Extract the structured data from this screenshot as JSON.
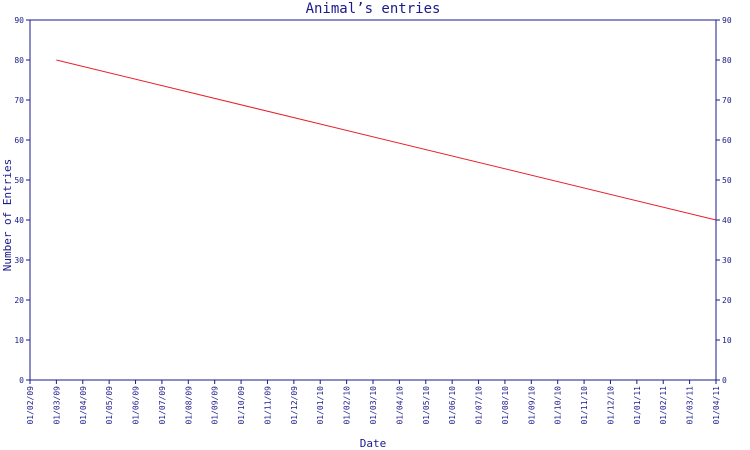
{
  "chart_data": {
    "type": "line",
    "title": "Animal’s entries",
    "xlabel": "Date",
    "ylabel": "Number of Entries",
    "ylim": [
      0,
      90
    ],
    "yticks": [
      0,
      10,
      20,
      30,
      40,
      50,
      60,
      70,
      80,
      90
    ],
    "right_axis": true,
    "grid": false,
    "categories": [
      "01/02/09",
      "01/03/09",
      "01/04/09",
      "01/05/09",
      "01/06/09",
      "01/07/09",
      "01/08/09",
      "01/09/09",
      "01/10/09",
      "01/11/09",
      "01/12/09",
      "01/01/10",
      "01/02/10",
      "01/03/10",
      "01/04/10",
      "01/05/10",
      "01/06/10",
      "01/07/10",
      "01/08/10",
      "01/09/10",
      "01/10/10",
      "01/11/10",
      "01/12/10",
      "01/01/11",
      "01/02/11",
      "01/03/11",
      "01/04/11"
    ],
    "series": [
      {
        "color": "#e8202a",
        "points": [
          {
            "x": "01/03/09",
            "y": 80
          },
          {
            "x": "01/04/11",
            "y": 40
          }
        ]
      }
    ],
    "colors": {
      "axis": "#1a1a8c",
      "text": "#1a1a8c",
      "line": "#e8202a",
      "background": "#ffffff"
    }
  }
}
